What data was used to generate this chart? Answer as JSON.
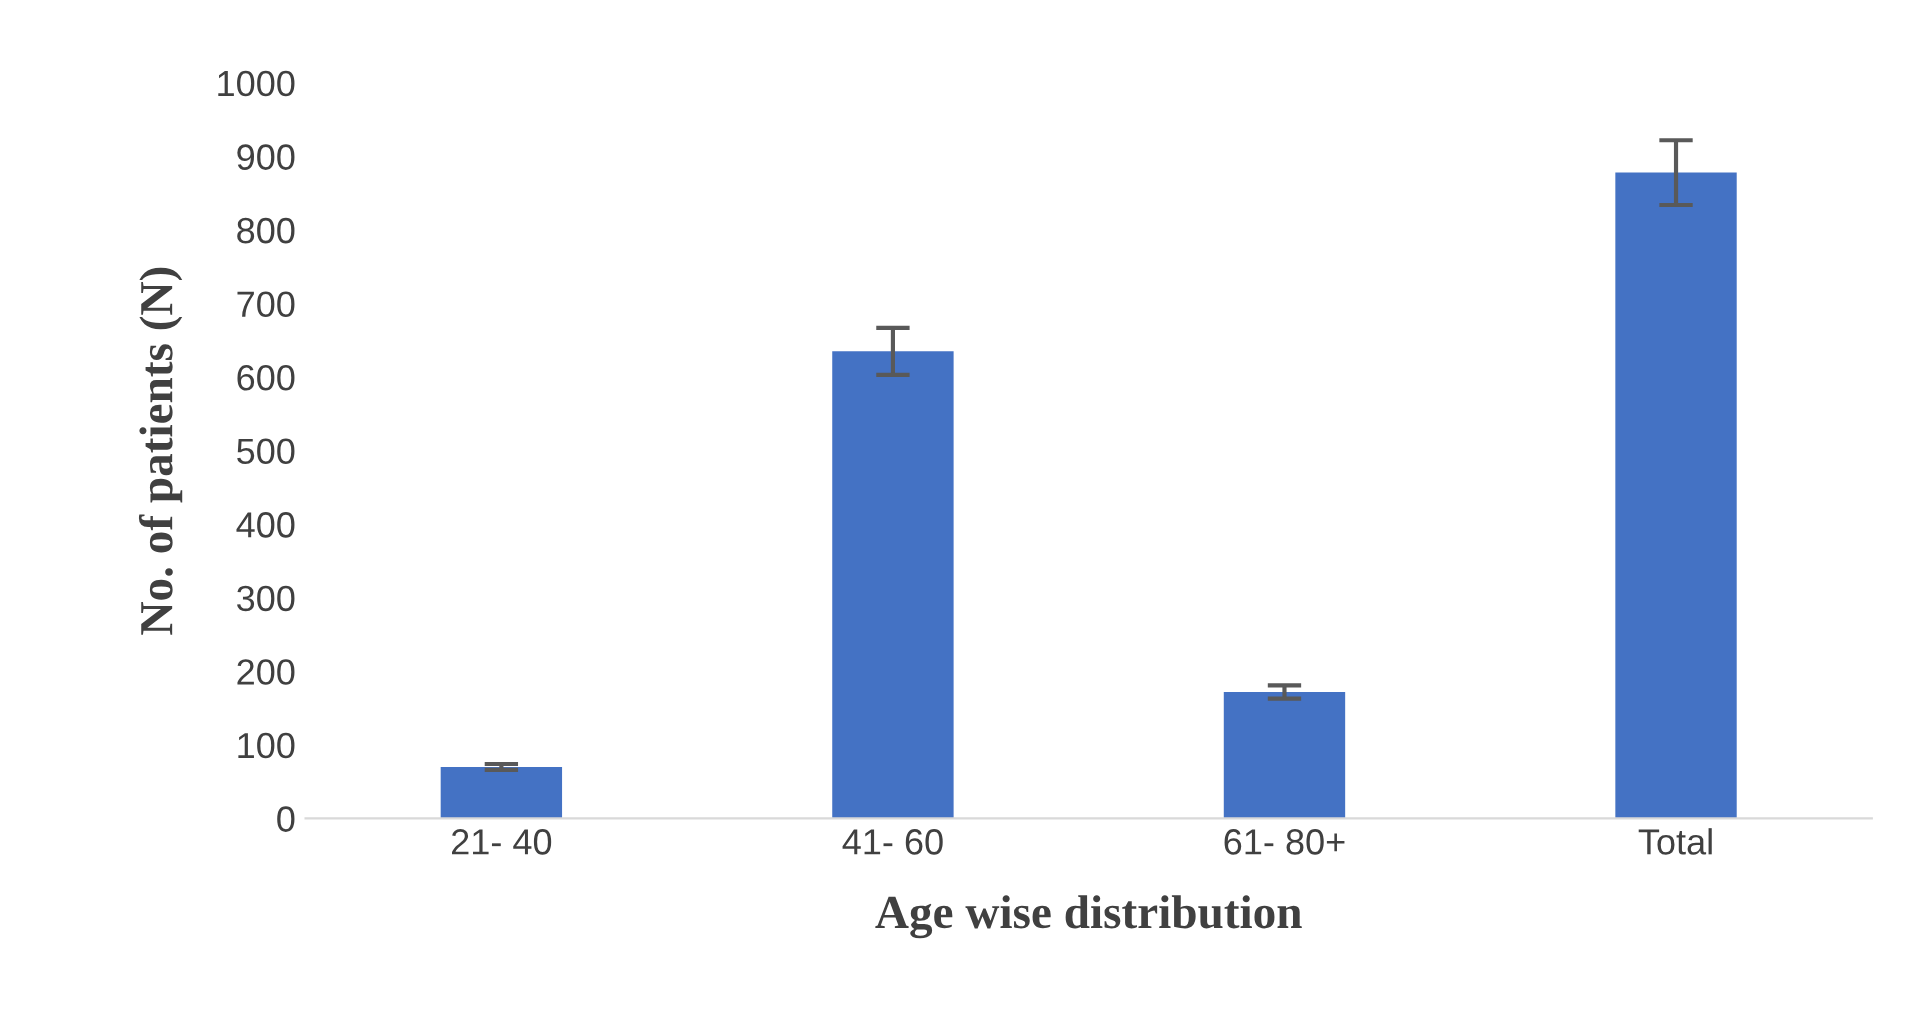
{
  "chart_data": {
    "type": "bar",
    "xlabel": "Age wise distribution",
    "ylabel": "No. of patients (N)",
    "categories": [
      "21- 40",
      "41- 60",
      "61- 80+",
      "Total"
    ],
    "values": [
      70,
      635,
      172,
      878
    ],
    "errors": [
      4,
      32,
      9,
      44
    ],
    "color": "#4472c4",
    "ylim": [
      0,
      1000
    ],
    "yticks": [
      0,
      100,
      200,
      300,
      400,
      500,
      600,
      700,
      800,
      900,
      1000
    ],
    "grid": false,
    "legend": false
  }
}
